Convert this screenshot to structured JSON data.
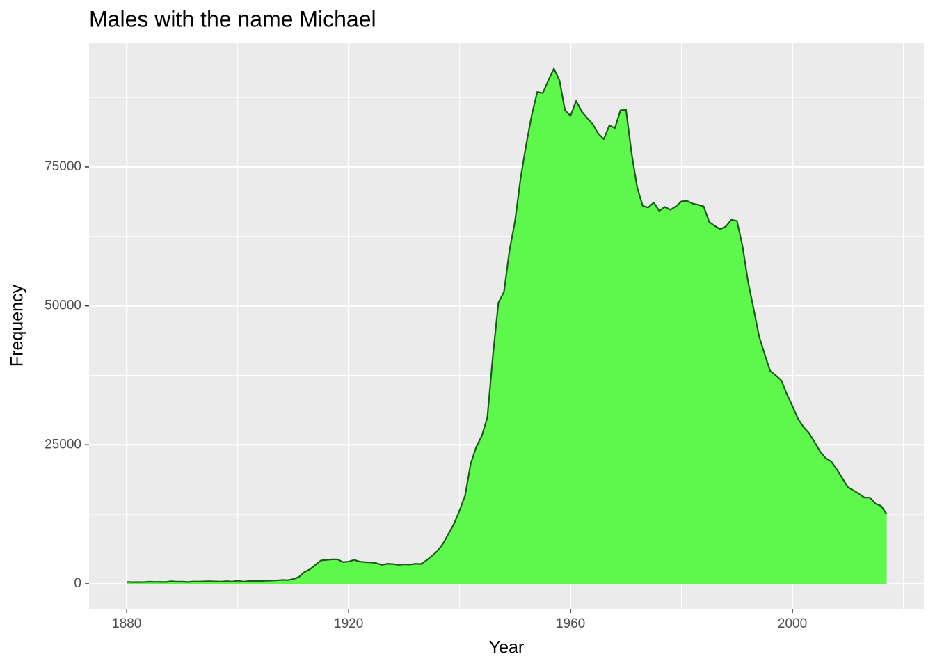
{
  "chart_data": {
    "type": "area",
    "title": "Males with the name Michael",
    "x_label": "Year",
    "y_label": "Frequency",
    "x": [
      1880,
      1881,
      1882,
      1883,
      1884,
      1885,
      1886,
      1887,
      1888,
      1889,
      1890,
      1891,
      1892,
      1893,
      1894,
      1895,
      1896,
      1897,
      1898,
      1899,
      1900,
      1901,
      1902,
      1903,
      1904,
      1905,
      1906,
      1907,
      1908,
      1909,
      1910,
      1911,
      1912,
      1913,
      1914,
      1915,
      1916,
      1917,
      1918,
      1919,
      1920,
      1921,
      1922,
      1923,
      1924,
      1925,
      1926,
      1927,
      1928,
      1929,
      1930,
      1931,
      1932,
      1933,
      1934,
      1935,
      1936,
      1937,
      1938,
      1939,
      1940,
      1941,
      1942,
      1943,
      1944,
      1945,
      1946,
      1947,
      1948,
      1949,
      1950,
      1951,
      1952,
      1953,
      1954,
      1955,
      1956,
      1957,
      1958,
      1959,
      1960,
      1961,
      1962,
      1963,
      1964,
      1965,
      1966,
      1967,
      1968,
      1969,
      1970,
      1971,
      1972,
      1973,
      1974,
      1975,
      1976,
      1977,
      1978,
      1979,
      1980,
      1981,
      1982,
      1983,
      1984,
      1985,
      1986,
      1987,
      1988,
      1989,
      1990,
      1991,
      1992,
      1993,
      1994,
      1995,
      1996,
      1997,
      1998,
      1999,
      2000,
      2001,
      2002,
      2003,
      2004,
      2005,
      2006,
      2007,
      2008,
      2009,
      2010,
      2011,
      2012,
      2013,
      2014,
      2015,
      2016,
      2017
    ],
    "values": [
      354,
      298,
      321,
      307,
      373,
      354,
      348,
      330,
      460,
      380,
      390,
      330,
      410,
      400,
      440,
      450,
      430,
      400,
      480,
      400,
      560,
      400,
      490,
      490,
      500,
      550,
      580,
      620,
      700,
      650,
      850,
      1200,
      2100,
      2600,
      3400,
      4200,
      4300,
      4400,
      4400,
      3900,
      4000,
      4300,
      4000,
      3900,
      3850,
      3700,
      3400,
      3600,
      3550,
      3400,
      3500,
      3450,
      3600,
      3550,
      4200,
      5000,
      5900,
      7200,
      9000,
      10800,
      13200,
      15900,
      21600,
      24600,
      26600,
      29900,
      41000,
      50600,
      52500,
      60000,
      65300,
      73000,
      79000,
      84300,
      88500,
      88300,
      90600,
      92700,
      90600,
      85200,
      84200,
      86900,
      85000,
      83800,
      82700,
      81000,
      80000,
      82500,
      82000,
      85200,
      85300,
      77500,
      71400,
      68000,
      67700,
      68600,
      67100,
      67800,
      67300,
      67900,
      68800,
      68900,
      68400,
      68200,
      67900,
      65100,
      64400,
      63800,
      64300,
      65500,
      65300,
      60800,
      54400,
      49500,
      44500,
      41300,
      38300,
      37500,
      36600,
      34100,
      32000,
      29700,
      28200,
      27100,
      25500,
      23800,
      22600,
      22000,
      20600,
      19000,
      17400,
      16800,
      16200,
      15500,
      15500,
      14400,
      14000,
      12500
    ],
    "fill_color": "#5ef84d",
    "color": "#1c5a1c",
    "xlim": [
      1873.2,
      2023.7
    ],
    "ylim": [
      -4507,
      97280
    ],
    "xticks": [
      1880,
      1920,
      1960,
      2000
    ],
    "yticks": [
      0,
      25000,
      50000,
      75000
    ],
    "x_minor_ticks": [
      1900,
      1940,
      1980,
      2020
    ],
    "y_minor_ticks": [
      12500,
      37500,
      62500,
      87500
    ],
    "grid": true
  }
}
